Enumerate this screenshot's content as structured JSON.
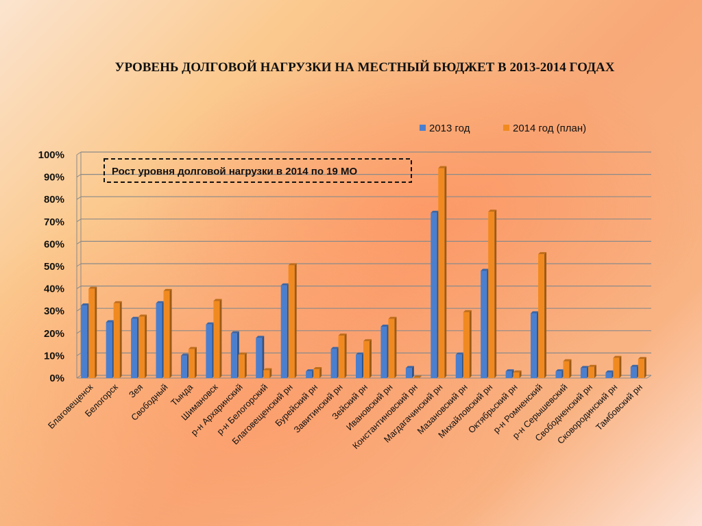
{
  "title": "УРОВЕНЬ ДОЛГОВОЙ НАГРУЗКИ НА МЕСТНЫЙ БЮДЖЕТ В 2013-2014 ГОДАХ",
  "colors": {
    "s2013": "#4a7fd0",
    "s2014": "#f08a20",
    "grid": "#8a8a8a"
  },
  "chart_data": {
    "type": "bar",
    "title": "УРОВЕНЬ ДОЛГОВОЙ НАГРУЗКИ НА МЕСТНЫЙ БЮДЖЕТ В 2013-2014 ГОДАХ",
    "annotation": "Рост уровня долговой нагрузки в 2014  по 19 МО",
    "legend_position": "top-right",
    "grid": true,
    "ylim": [
      0,
      100
    ],
    "yticks": [
      "0%",
      "10%",
      "20%",
      "30%",
      "40%",
      "50%",
      "60%",
      "70%",
      "80%",
      "90%",
      "100%"
    ],
    "categories": [
      "Благовещенск",
      "Белогорск",
      "Зея",
      "Свободный",
      "Тында",
      "Шимановск",
      "р-н Архаринский",
      "р-н Белогорский",
      "Благовещенский рн",
      "Бурейский рн",
      "Завитинский рн",
      "Зейский рн",
      "Ивановский рн",
      "Константиновский рн",
      "Магдагачинский рн",
      "Мазановский рн",
      "Михайловский рн",
      "Октябрьский рн",
      "р-н Ромненский",
      "р-н Серышевский",
      "Свободненский рн",
      "Сковородинский рн",
      "Тамбовский рн"
    ],
    "series": [
      {
        "name": "2013 год",
        "values": [
          32.5,
          25,
          26.5,
          33.5,
          10,
          24,
          20,
          18,
          41.5,
          3,
          13,
          10.5,
          23,
          4.5,
          74,
          10.5,
          48,
          3,
          29,
          3,
          4.5,
          2.5,
          5
        ]
      },
      {
        "name": "2014 год (план)",
        "values": [
          40,
          33.5,
          27.5,
          39,
          13,
          34.5,
          10.5,
          3.5,
          50.5,
          4,
          19,
          16.5,
          26.5,
          0.2,
          94,
          29.5,
          74.5,
          2.5,
          55.5,
          7.5,
          5,
          9,
          8.5
        ]
      }
    ]
  }
}
